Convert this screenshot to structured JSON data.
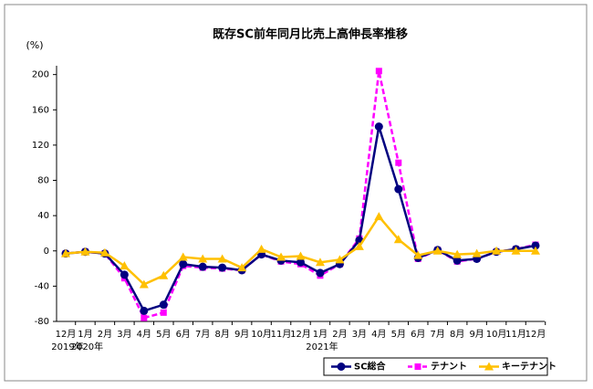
{
  "chart_data": {
    "type": "line",
    "title": "既存SC前年同月比売上高伸長率推移",
    "y_label": "(%)",
    "categories": [
      "12月",
      "1月",
      "2月",
      "3月",
      "4月",
      "5月",
      "6月",
      "7月",
      "8月",
      "9月",
      "10月",
      "11月",
      "12月",
      "1月",
      "2月",
      "3月",
      "4月",
      "5月",
      "6月",
      "7月",
      "8月",
      "9月",
      "10月",
      "11月",
      "12月"
    ],
    "year_labels": [
      "2019年",
      "2020年",
      null,
      null,
      null,
      null,
      null,
      null,
      null,
      null,
      null,
      null,
      null,
      "2021年",
      null,
      null,
      null,
      null,
      null,
      null,
      null,
      null,
      null,
      null,
      null
    ],
    "ylim": [
      -80,
      210
    ],
    "yticks": [
      -80,
      -40,
      0,
      40,
      80,
      120,
      160,
      200
    ],
    "legend": "bottom-right",
    "series": [
      {
        "name": "SC総合",
        "color": "#000080",
        "marker": "circle",
        "dashed": false,
        "values": [
          -3,
          -1,
          -3,
          -27,
          -68,
          -61,
          -15,
          -18,
          -19,
          -22,
          -4,
          -11,
          -13,
          -25,
          -15,
          12,
          141,
          70,
          -8,
          1,
          -11,
          -9,
          -1,
          2,
          6
        ]
      },
      {
        "name": "テナント",
        "color": "#ff00ff",
        "marker": "square",
        "dashed": true,
        "values": [
          -3,
          -1,
          -3,
          -31,
          -76,
          -70,
          -17,
          -19,
          -20,
          -22,
          -4,
          -12,
          -15,
          -28,
          -15,
          14,
          204,
          100,
          -9,
          1,
          -12,
          -9,
          -1,
          2,
          7
        ]
      },
      {
        "name": "キーテナント",
        "color": "#ffc000",
        "marker": "triangle",
        "dashed": false,
        "values": [
          -3,
          -1,
          -2,
          -17,
          -38,
          -28,
          -7,
          -9,
          -9,
          -19,
          2,
          -7,
          -6,
          -13,
          -10,
          5,
          39,
          13,
          -5,
          0,
          -4,
          -3,
          0,
          0,
          0
        ]
      }
    ]
  }
}
